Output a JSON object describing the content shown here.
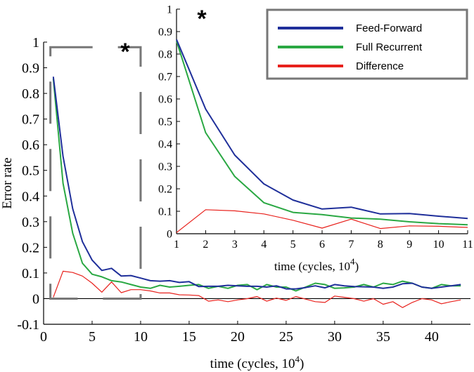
{
  "chart_data": [
    {
      "type": "line",
      "xlabel": "time (cycles, 10",
      "xlabel_sup": "4",
      "ylabel": "Error rate",
      "xlim": [
        0,
        44
      ],
      "ylim": [
        -0.1,
        1.0
      ],
      "xticks": [
        0,
        5,
        10,
        15,
        20,
        25,
        30,
        35,
        40
      ],
      "yticks": [
        -0.1,
        0,
        0.1,
        0.2,
        0.3,
        0.4,
        0.5,
        0.6,
        0.7,
        0.8,
        0.9,
        1
      ],
      "ytick_labels": [
        "-0.1",
        "0",
        "0.1",
        "0.2",
        "0.3",
        "0.4",
        "0.5",
        "0.6",
        "0.7",
        "0.8",
        "0.9",
        "1"
      ],
      "zero_line": true,
      "zoom_box": {
        "x": [
          0.7,
          10
        ],
        "y": [
          0,
          0.98
        ]
      },
      "annotation": "*",
      "x": [
        1,
        2,
        3,
        4,
        5,
        6,
        7,
        8,
        9,
        10,
        11,
        12,
        13,
        14,
        15,
        16,
        17,
        18,
        19,
        20,
        21,
        22,
        23,
        24,
        25,
        26,
        27,
        28,
        29,
        30,
        31,
        32,
        33,
        34,
        35,
        36,
        37,
        38,
        39,
        40,
        41,
        42,
        43
      ],
      "series": [
        {
          "name": "Feed-Forward",
          "color": "#1f2f9a",
          "values": [
            0.865,
            0.555,
            0.35,
            0.222,
            0.15,
            0.11,
            0.118,
            0.088,
            0.09,
            0.08,
            0.07,
            0.068,
            0.07,
            0.063,
            0.066,
            0.047,
            0.048,
            0.048,
            0.052,
            0.05,
            0.048,
            0.048,
            0.045,
            0.05,
            0.038,
            0.038,
            0.043,
            0.05,
            0.042,
            0.055,
            0.05,
            0.047,
            0.046,
            0.045,
            0.04,
            0.045,
            0.058,
            0.06,
            0.045,
            0.04,
            0.045,
            0.05,
            0.055
          ]
        },
        {
          "name": "Full Recurrent",
          "color": "#2aa843",
          "values": [
            0.858,
            0.45,
            0.255,
            0.138,
            0.095,
            0.085,
            0.07,
            0.065,
            0.055,
            0.045,
            0.04,
            0.052,
            0.045,
            0.048,
            0.052,
            0.055,
            0.04,
            0.048,
            0.04,
            0.052,
            0.055,
            0.035,
            0.055,
            0.045,
            0.045,
            0.03,
            0.045,
            0.06,
            0.055,
            0.04,
            0.042,
            0.045,
            0.055,
            0.045,
            0.06,
            0.055,
            0.068,
            0.06,
            0.045,
            0.04,
            0.055,
            0.05,
            0.05
          ]
        },
        {
          "name": "Difference",
          "color": "#e8211c",
          "values": [
            0.005,
            0.107,
            0.102,
            0.088,
            0.06,
            0.025,
            0.065,
            0.023,
            0.035,
            0.035,
            0.03,
            0.022,
            0.022,
            0.015,
            0.014,
            0.012,
            -0.01,
            -0.005,
            -0.012,
            -0.005,
            0.0,
            0.008,
            -0.01,
            0.002,
            -0.007,
            0.008,
            -0.002,
            -0.012,
            -0.015,
            0.01,
            0.005,
            0.0,
            -0.01,
            0.0,
            -0.022,
            -0.012,
            -0.035,
            -0.015,
            0.0,
            -0.005,
            -0.02,
            -0.012,
            -0.005
          ]
        }
      ]
    },
    {
      "type": "line",
      "xlabel": "time (cycles, 10",
      "xlabel_sup": "4",
      "xlim": [
        1,
        11
      ],
      "ylim": [
        0,
        1.0
      ],
      "xticks": [
        1,
        2,
        3,
        4,
        5,
        6,
        7,
        8,
        9,
        10,
        11
      ],
      "yticks": [
        0,
        0.1,
        0.2,
        0.3,
        0.4,
        0.5,
        0.6,
        0.7,
        0.8,
        0.9,
        1
      ],
      "ytick_labels": [
        "0",
        "0.1",
        "0.2",
        "0.3",
        "0.4",
        "0.5",
        "0.6",
        "0.7",
        "0.8",
        "0.9",
        "1"
      ],
      "annotation": "*",
      "legend": {
        "placement": "top-right"
      },
      "x": [
        1,
        2,
        3,
        4,
        5,
        6,
        7,
        8,
        9,
        10,
        11
      ],
      "series": [
        {
          "name": "Feed-Forward",
          "color": "#1f2f9a",
          "values": [
            0.865,
            0.555,
            0.35,
            0.222,
            0.15,
            0.11,
            0.118,
            0.088,
            0.09,
            0.078,
            0.068
          ]
        },
        {
          "name": "Full Recurrent",
          "color": "#2aa843",
          "values": [
            0.858,
            0.45,
            0.255,
            0.138,
            0.095,
            0.085,
            0.07,
            0.065,
            0.053,
            0.045,
            0.04
          ]
        },
        {
          "name": "Difference",
          "color": "#e8211c",
          "values": [
            0.005,
            0.107,
            0.102,
            0.088,
            0.06,
            0.025,
            0.065,
            0.023,
            0.035,
            0.033,
            0.028
          ]
        }
      ]
    }
  ]
}
